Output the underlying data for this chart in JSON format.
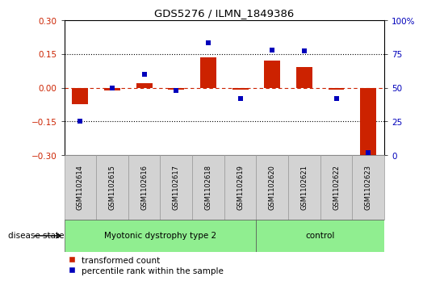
{
  "title": "GDS5276 / ILMN_1849386",
  "samples": [
    "GSM1102614",
    "GSM1102615",
    "GSM1102616",
    "GSM1102617",
    "GSM1102618",
    "GSM1102619",
    "GSM1102620",
    "GSM1102621",
    "GSM1102622",
    "GSM1102623"
  ],
  "transformed_count": [
    -0.072,
    -0.012,
    0.02,
    -0.01,
    0.135,
    -0.01,
    0.122,
    0.09,
    -0.01,
    -0.3
  ],
  "percentile_rank": [
    25,
    50,
    60,
    48,
    83,
    42,
    78,
    77,
    42,
    2
  ],
  "group1_label": "Myotonic dystrophy type 2",
  "group1_samples": 6,
  "group2_label": "control",
  "group2_samples": 4,
  "disease_state_label": "disease state",
  "ylim_left": [
    -0.3,
    0.3
  ],
  "ylim_right": [
    0,
    100
  ],
  "yticks_left": [
    -0.3,
    -0.15,
    0,
    0.15,
    0.3
  ],
  "yticks_right": [
    0,
    25,
    50,
    75,
    100
  ],
  "hlines": [
    0.15,
    -0.15
  ],
  "bar_color": "#cc2200",
  "marker_color": "#0000bb",
  "zero_line_color": "#cc2200",
  "dot_line_color": "#000000",
  "bg_color": "#ffffff",
  "label_box_color": "#d3d3d3",
  "group_box_color": "#90ee90",
  "legend_red_label": "transformed count",
  "legend_blue_label": "percentile rank within the sample"
}
